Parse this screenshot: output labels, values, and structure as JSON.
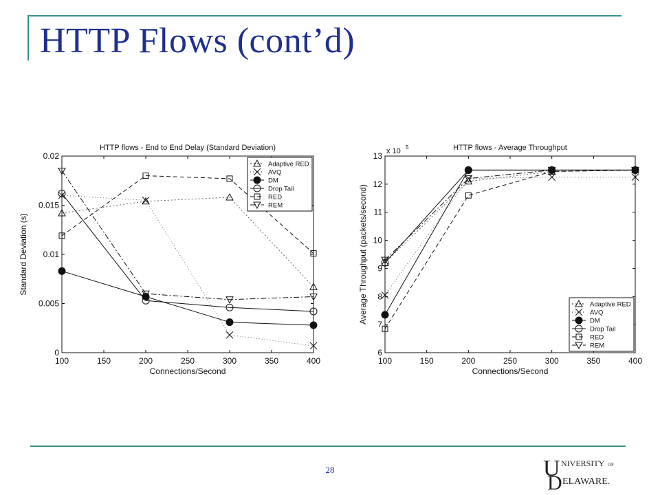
{
  "slide": {
    "title": "HTTP Flows (cont’d)",
    "page_number": "28",
    "logo": "UNIVERSITY OF DELAWARE"
  },
  "chart_data": [
    {
      "type": "line",
      "title": "HTTP flows - End to End Delay (Standard Deviation)",
      "xlabel": "Connections/Second",
      "ylabel": "Standard Deviation (s)",
      "xlim": [
        100,
        400
      ],
      "ylim": [
        0,
        0.02
      ],
      "xticks": [
        "100",
        "150",
        "200",
        "250",
        "300",
        "350",
        "400"
      ],
      "yticks": [
        "0",
        "0.005",
        "0.01",
        "0.015",
        "0.02"
      ],
      "legend_position": "top-right",
      "x": [
        100,
        200,
        300,
        400
      ],
      "series": [
        {
          "name": "Adaptive RED",
          "values": [
            0.0142,
            0.0154,
            0.0158,
            0.0067
          ],
          "marker": "triangle-up",
          "dash": "2,3"
        },
        {
          "name": "AVQ",
          "values": [
            0.016,
            0.0155,
            0.0018,
            0.0007
          ],
          "marker": "x",
          "dash": "1,3"
        },
        {
          "name": "DM",
          "values": [
            0.0083,
            0.0057,
            0.0031,
            0.0028
          ],
          "marker": "dot",
          "dash": ""
        },
        {
          "name": "Drop Tail",
          "values": [
            0.0162,
            0.0053,
            0.0046,
            0.0042
          ],
          "marker": "circle",
          "dash": ""
        },
        {
          "name": "RED",
          "values": [
            0.0119,
            0.018,
            0.0177,
            0.0101
          ],
          "marker": "square",
          "dash": "6,4"
        },
        {
          "name": "REM",
          "values": [
            0.0185,
            0.006,
            0.0054,
            0.0057
          ],
          "marker": "triangle-down",
          "dash": "8,3,2,3"
        }
      ]
    },
    {
      "type": "line",
      "title": "HTTP flows - Average Throughput",
      "xlabel": "Connections/Second",
      "ylabel": "Average Throughput (packets/second)",
      "y_multiplier": "x 10",
      "y_exponent": "5",
      "xlim": [
        100,
        400
      ],
      "ylim": [
        6,
        13
      ],
      "xticks": [
        "100",
        "150",
        "200",
        "250",
        "300",
        "350",
        "400"
      ],
      "yticks": [
        "6",
        "7",
        "8",
        "9",
        "10",
        "11",
        "12",
        "13"
      ],
      "legend_position": "bottom-right",
      "x": [
        100,
        200,
        300,
        400
      ],
      "series": [
        {
          "name": "Adaptive RED",
          "values": [
            9.2,
            12.1,
            12.45,
            12.5
          ],
          "marker": "triangle-up",
          "dash": "2,3"
        },
        {
          "name": "AVQ",
          "values": [
            8.05,
            12.2,
            12.25,
            12.25
          ],
          "marker": "x",
          "dash": "1,3"
        },
        {
          "name": "DM",
          "values": [
            7.35,
            12.5,
            12.5,
            12.5
          ],
          "marker": "dot",
          "dash": ""
        },
        {
          "name": "Drop Tail",
          "values": [
            9.2,
            12.5,
            12.5,
            12.5
          ],
          "marker": "circle",
          "dash": ""
        },
        {
          "name": "RED",
          "values": [
            6.85,
            11.6,
            12.45,
            12.5
          ],
          "marker": "square",
          "dash": "6,4"
        },
        {
          "name": "REM",
          "values": [
            9.3,
            12.2,
            12.5,
            12.5
          ],
          "marker": "triangle-down",
          "dash": "8,3,2,3"
        }
      ]
    }
  ]
}
